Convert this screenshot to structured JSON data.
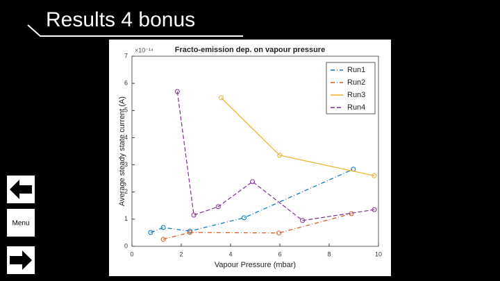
{
  "slide": {
    "title": "Results 4 bonus",
    "menu": "Menu"
  },
  "chart_data": {
    "type": "line",
    "title": "Fracto-emission dep. on vapour pressure",
    "x_label": "Vapour Pressure (mbar)",
    "y_label": "Average steady state current (A)",
    "y_multiplier": "×10⁻¹⁴",
    "xlim": [
      0,
      10
    ],
    "xticks": [
      0,
      2,
      4,
      6,
      8,
      10
    ],
    "ylim": [
      0,
      7
    ],
    "yticks": [
      0,
      1,
      2,
      3,
      4,
      5,
      6,
      7
    ],
    "legend": "top-right",
    "series": [
      {
        "name": "Run1",
        "color": "#0072bd",
        "line_style": "dash-dot",
        "x": [
          0.76,
          1.27,
          2.35,
          4.55,
          8.98
        ],
        "values": [
          0.51,
          0.69,
          0.56,
          1.05,
          2.84
        ]
      },
      {
        "name": "Run2",
        "color": "#d95319",
        "line_style": "dash-dot",
        "x": [
          1.27,
          2.35,
          5.96,
          8.9
        ],
        "values": [
          0.26,
          0.51,
          0.49,
          1.2
        ]
      },
      {
        "name": "Run3",
        "color": "#edb120",
        "line_style": "solid",
        "x": [
          3.62,
          5.99,
          9.83
        ],
        "values": [
          5.47,
          3.35,
          2.6
        ]
      },
      {
        "name": "Run4",
        "color": "#7e2f8e",
        "line_style": "dashed",
        "x": [
          1.84,
          2.51,
          3.5,
          4.89,
          6.92,
          9.83
        ],
        "values": [
          5.7,
          1.15,
          1.46,
          2.38,
          0.95,
          1.35
        ]
      }
    ]
  }
}
